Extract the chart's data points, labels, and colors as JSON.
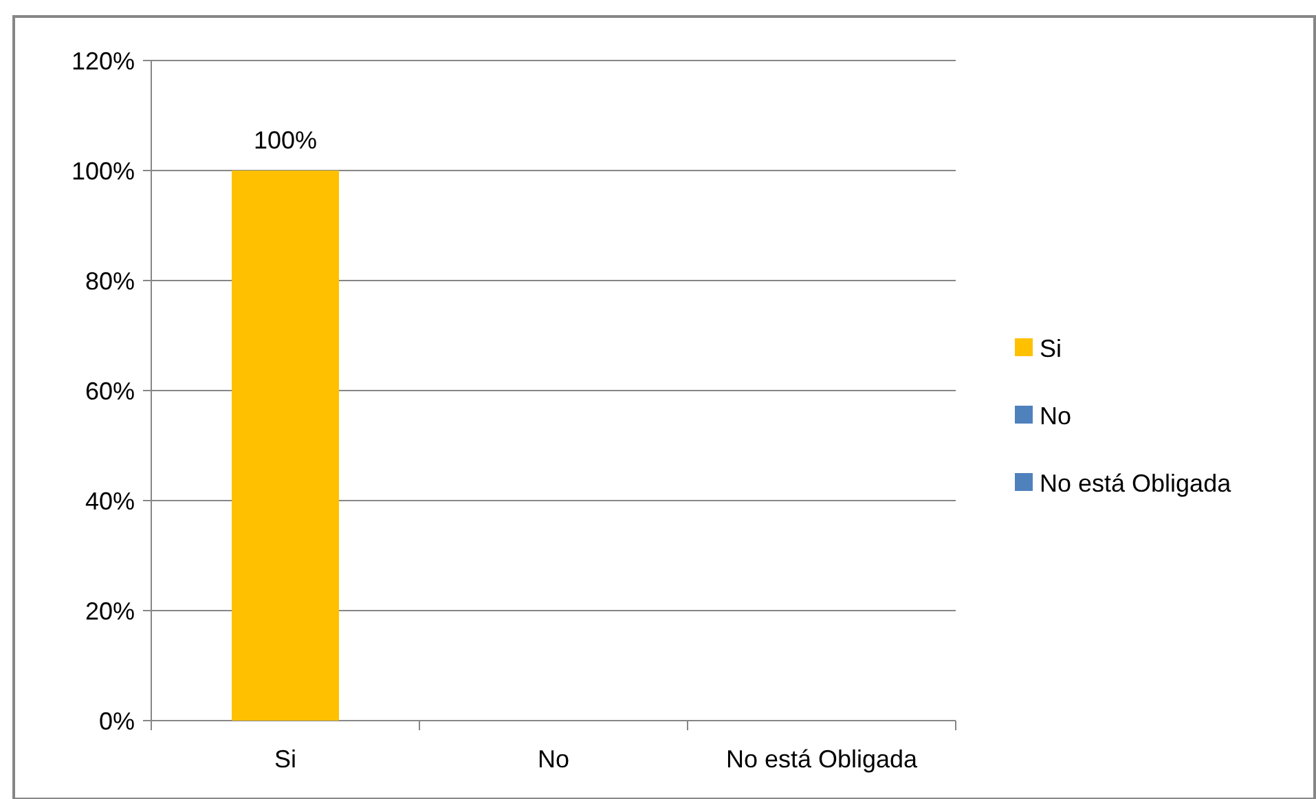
{
  "chart_data": {
    "type": "bar",
    "categories": [
      "Si",
      "No",
      "No está Obligada"
    ],
    "series": [
      {
        "name": "Si",
        "color": "#ffc000",
        "values": [
          100,
          null,
          null
        ],
        "value_labels": [
          "100%",
          null,
          null
        ]
      },
      {
        "name": "No",
        "color": "#4f81bd",
        "values": [
          null,
          0,
          null
        ]
      },
      {
        "name": "No está Obligada",
        "color": "#4f81bd",
        "values": [
          null,
          null,
          0
        ]
      }
    ],
    "ylim": [
      0,
      120
    ],
    "yticks": [
      {
        "value": 0,
        "label": "0%"
      },
      {
        "value": 20,
        "label": "20%"
      },
      {
        "value": 40,
        "label": "40%"
      },
      {
        "value": 60,
        "label": "60%"
      },
      {
        "value": 80,
        "label": "80%"
      },
      {
        "value": 100,
        "label": "100%"
      },
      {
        "value": 120,
        "label": "120%"
      }
    ],
    "grid": "y",
    "legend": "right"
  }
}
